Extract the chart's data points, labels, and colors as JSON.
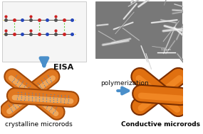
{
  "bg_color": "#ffffff",
  "labels": {
    "eisa": "EISA",
    "polymerization": "polymerization",
    "crystalline": "crystalline microrods",
    "conductive": "Conductive microrods"
  },
  "label_fontsize": 6.5,
  "eisa_fontsize": 8,
  "poly_fontsize": 6.5,
  "arrow_color": "#4a8fca",
  "rod_orange": "#E07820",
  "rod_blue": "#4a7fc4",
  "dark_orange": "#a04808",
  "light_orange": "#ffcc88",
  "solid_orange": "#E07010",
  "light_solid": "#ff9933",
  "dark_solid": "#7a2e00",
  "mol_bg": "#f5f5f5",
  "sem_bg": "#787878",
  "green_dash": "#66cc44",
  "atom_colors": [
    "#505050",
    "#cc2020",
    "#2244bb",
    "#505050",
    "#cc2020",
    "#2244bb",
    "#505050",
    "#cc2020",
    "#2244bb"
  ]
}
